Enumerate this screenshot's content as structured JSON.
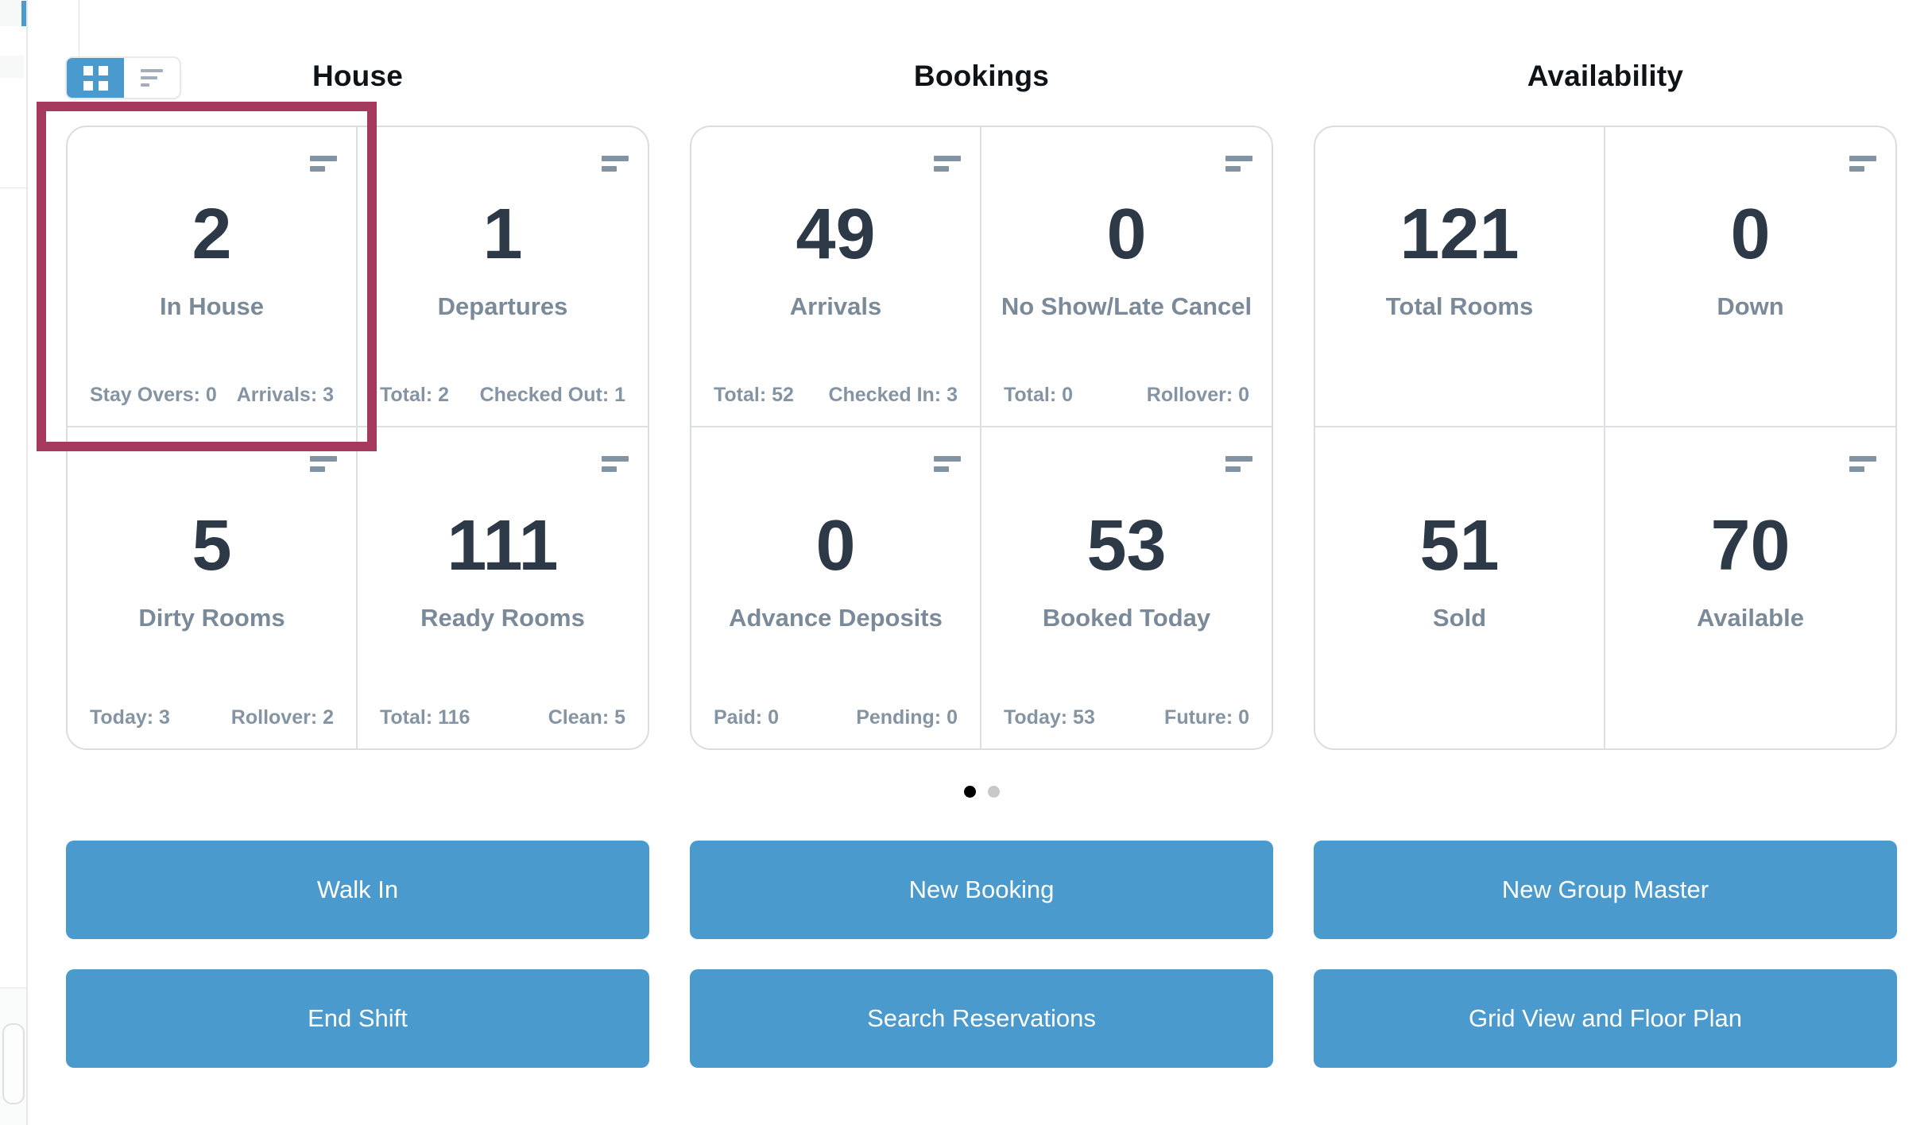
{
  "colors": {
    "primary_blue": "#4a9ace",
    "highlight_border": "#a63a5e",
    "stat_number": "#2e3947",
    "stat_label": "#7b8a99",
    "substat_text": "#8594a3",
    "section_title": "#0e1318",
    "card_border": "#d9dde1",
    "menu_icon_bar": "#8293a3",
    "active_dot": "#000000",
    "inactive_dot": "#c8c8c8"
  },
  "view_toggle": {
    "active_view": "grid",
    "grid_icon": "grid-view-icon",
    "list_icon": "list-view-icon"
  },
  "sections": [
    {
      "title": "House",
      "cards": [
        {
          "value": "2",
          "label": "In House",
          "stat_left": "Stay Overs: 0",
          "stat_right": "Arrivals: 3",
          "highlighted": true,
          "menu_icon": true
        },
        {
          "value": "1",
          "label": "Departures",
          "stat_left": "Total: 2",
          "stat_right": "Checked Out: 1",
          "highlighted": false,
          "menu_icon": true
        },
        {
          "value": "5",
          "label": "Dirty Rooms",
          "stat_left": "Today: 3",
          "stat_right": "Rollover: 2",
          "highlighted": false,
          "menu_icon": true
        },
        {
          "value": "111",
          "label": "Ready Rooms",
          "stat_left": "Total: 116",
          "stat_right": "Clean: 5",
          "highlighted": false,
          "menu_icon": true
        }
      ]
    },
    {
      "title": "Bookings",
      "cards": [
        {
          "value": "49",
          "label": "Arrivals",
          "stat_left": "Total: 52",
          "stat_right": "Checked In: 3",
          "highlighted": false,
          "menu_icon": true
        },
        {
          "value": "0",
          "label": "No Show/Late Cancel",
          "stat_left": "Total: 0",
          "stat_right": "Rollover: 0",
          "highlighted": false,
          "menu_icon": true
        },
        {
          "value": "0",
          "label": "Advance Deposits",
          "stat_left": "Paid: 0",
          "stat_right": "Pending: 0",
          "highlighted": false,
          "menu_icon": true
        },
        {
          "value": "53",
          "label": "Booked Today",
          "stat_left": "Today: 53",
          "stat_right": "Future: 0",
          "highlighted": false,
          "menu_icon": true
        }
      ]
    },
    {
      "title": "Availability",
      "cards": [
        {
          "value": "121",
          "label": "Total Rooms",
          "highlighted": false,
          "menu_icon": false
        },
        {
          "value": "0",
          "label": "Down",
          "highlighted": false,
          "menu_icon": true
        },
        {
          "value": "51",
          "label": "Sold",
          "highlighted": false,
          "menu_icon": false
        },
        {
          "value": "70",
          "label": "Available",
          "highlighted": false,
          "menu_icon": true
        }
      ]
    }
  ],
  "pagination": {
    "current_page": 1,
    "total_pages": 2
  },
  "actions": [
    {
      "top": "Walk In",
      "bottom": "End Shift"
    },
    {
      "top": "New Booking",
      "bottom": "Search Reservations"
    },
    {
      "top": "New Group Master",
      "bottom": "Grid View and Floor Plan"
    }
  ]
}
